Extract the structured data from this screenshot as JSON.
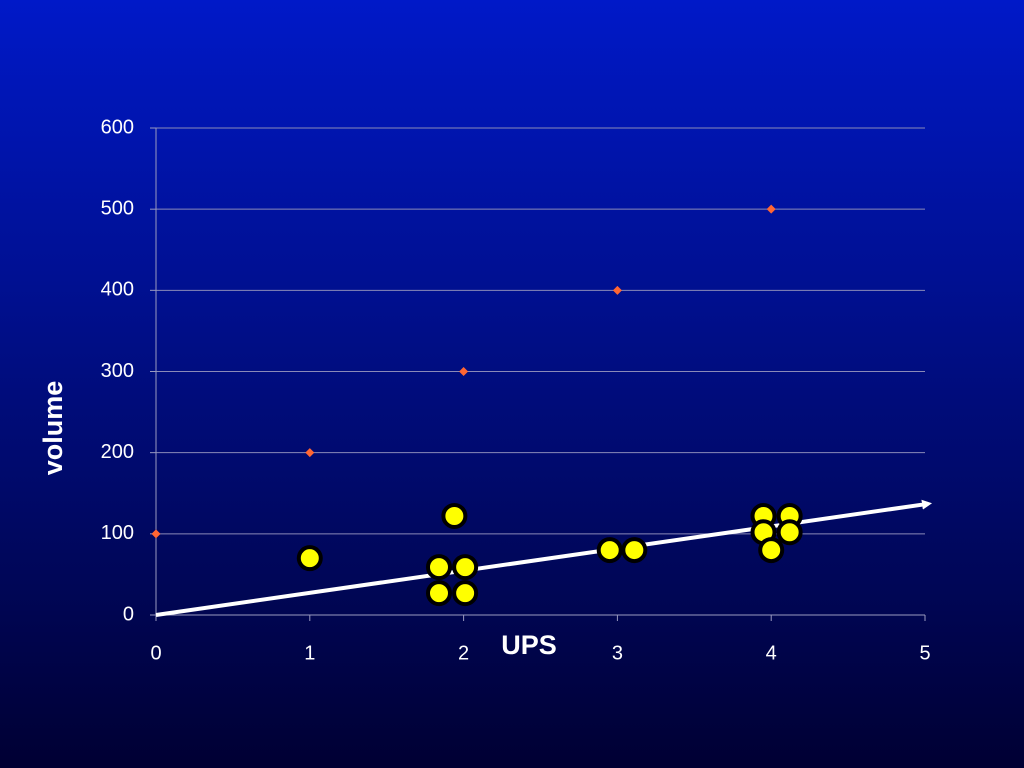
{
  "chart_data": {
    "type": "scatter",
    "x_label": "UPS",
    "y_label": "volume",
    "xlim": [
      0,
      5
    ],
    "xticks": [
      0,
      1,
      2,
      3,
      4,
      5
    ],
    "ylim": [
      0,
      600
    ],
    "yticks": [
      0,
      100,
      200,
      300,
      400,
      500,
      600
    ],
    "grid": true,
    "series": [
      {
        "kind": "scatter",
        "marker": "diamond",
        "color": "#ff6633",
        "x": [
          0,
          1,
          2,
          3,
          4
        ],
        "values": [
          100,
          200,
          300,
          400,
          500
        ]
      },
      {
        "kind": "scatter",
        "marker": "circle",
        "color": "#ffff00",
        "x": [
          1,
          1.94,
          1.84,
          2.01,
          1.84,
          2.01,
          2.95,
          3.11,
          3.95,
          4.12,
          3.95,
          4.12,
          4
        ],
        "values": [
          70,
          122,
          59,
          59,
          27,
          27,
          80,
          80,
          122,
          122,
          102,
          102,
          80
        ]
      },
      {
        "kind": "arrow",
        "color": "#ffffff",
        "x": [
          0,
          5.02
        ],
        "values": [
          0,
          137
        ]
      }
    ]
  }
}
